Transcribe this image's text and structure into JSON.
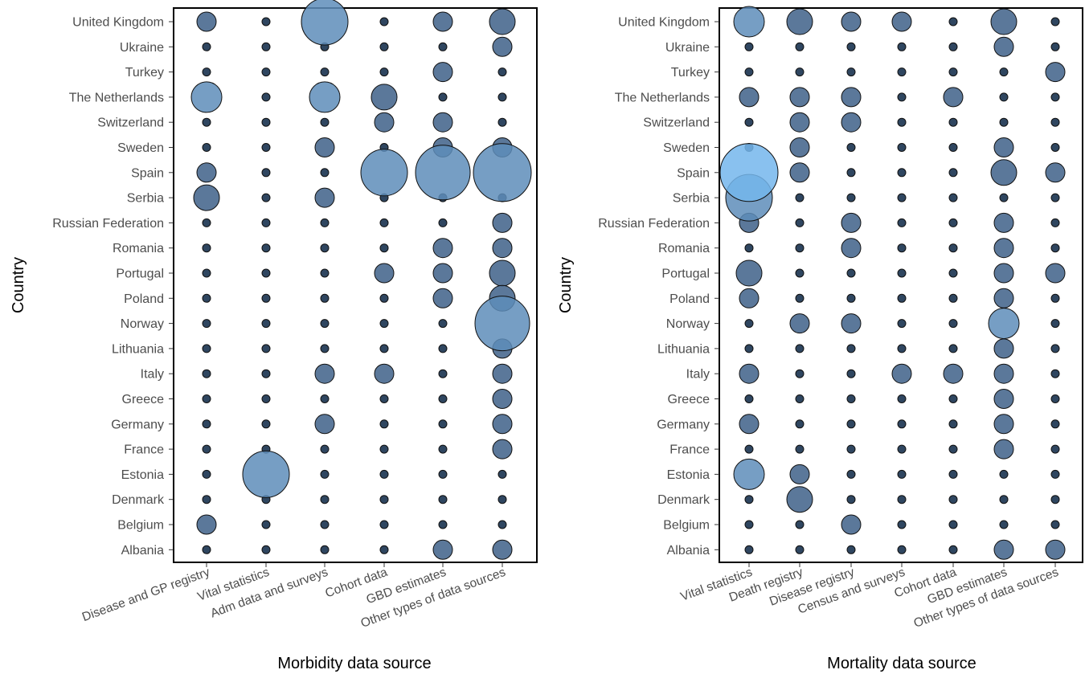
{
  "chart_data": [
    {
      "type": "scatter",
      "subtype": "bubble-grid",
      "xlabel": "Morbidity data source",
      "ylabel": "Country",
      "countries": [
        "United Kingdom",
        "Ukraine",
        "Turkey",
        "The Netherlands",
        "Switzerland",
        "Sweden",
        "Spain",
        "Serbia",
        "Russian Federation",
        "Romania",
        "Portugal",
        "Poland",
        "Norway",
        "Lithuania",
        "Italy",
        "Greece",
        "Germany",
        "France",
        "Estonia",
        "Denmark",
        "Belgium",
        "Albania"
      ],
      "categories": [
        "Disease and GP registry",
        "Vital statistics",
        "Adm data and surveys",
        "Cohort data",
        "GBD estimates",
        "Other types of data sources"
      ],
      "size_scale_note": "values are relative bubble sizes; 0 = smallest dot",
      "values": [
        [
          2,
          0,
          5,
          0,
          2,
          3
        ],
        [
          0,
          0,
          0,
          0,
          0,
          2
        ],
        [
          0,
          0,
          0,
          0,
          2,
          0
        ],
        [
          4,
          0,
          4,
          3,
          0,
          0
        ],
        [
          0,
          0,
          0,
          2,
          2,
          0
        ],
        [
          0,
          0,
          2,
          0,
          2,
          2
        ],
        [
          2,
          0,
          0,
          5,
          6,
          7
        ],
        [
          3,
          0,
          2,
          0,
          0,
          0
        ],
        [
          0,
          0,
          0,
          0,
          0,
          2
        ],
        [
          0,
          0,
          0,
          0,
          2,
          2
        ],
        [
          0,
          0,
          0,
          2,
          2,
          3
        ],
        [
          0,
          0,
          0,
          0,
          2,
          3
        ],
        [
          0,
          0,
          0,
          0,
          0,
          6
        ],
        [
          0,
          0,
          0,
          0,
          0,
          2
        ],
        [
          0,
          0,
          2,
          2,
          0,
          2
        ],
        [
          0,
          0,
          0,
          0,
          0,
          2
        ],
        [
          0,
          0,
          2,
          0,
          0,
          2
        ],
        [
          0,
          0,
          0,
          0,
          0,
          2
        ],
        [
          0,
          5,
          0,
          0,
          0,
          0
        ],
        [
          0,
          0,
          0,
          0,
          0,
          0
        ],
        [
          2,
          0,
          0,
          0,
          0,
          0
        ],
        [
          0,
          0,
          0,
          0,
          2,
          2
        ]
      ],
      "colors": {
        "small": "#2f4660",
        "medium": "#3e6088",
        "large": "#5e8dba"
      }
    },
    {
      "type": "scatter",
      "subtype": "bubble-grid",
      "xlabel": "Mortality data source",
      "ylabel": "Country",
      "countries": [
        "United Kingdom",
        "Ukraine",
        "Turkey",
        "The Netherlands",
        "Switzerland",
        "Sweden",
        "Spain",
        "Serbia",
        "Russian Federation",
        "Romania",
        "Portugal",
        "Poland",
        "Norway",
        "Lithuania",
        "Italy",
        "Greece",
        "Germany",
        "France",
        "Estonia",
        "Denmark",
        "Belgium",
        "Albania"
      ],
      "categories": [
        "Vital statistics",
        "Death registry",
        "Disease registry",
        "Census and surveys",
        "Cohort data",
        "GBD estimates",
        "Other types of data sources"
      ],
      "size_scale_note": "values are relative bubble sizes; 0 = smallest dot",
      "values": [
        [
          4,
          3,
          2,
          2,
          0,
          3,
          0
        ],
        [
          0,
          0,
          0,
          0,
          0,
          2,
          0
        ],
        [
          0,
          0,
          0,
          0,
          0,
          0,
          2
        ],
        [
          2,
          2,
          2,
          0,
          2,
          0,
          0
        ],
        [
          0,
          2,
          2,
          0,
          0,
          0,
          0
        ],
        [
          0,
          2,
          0,
          0,
          0,
          2,
          0
        ],
        [
          7,
          2,
          0,
          0,
          0,
          3,
          2
        ],
        [
          5,
          0,
          0,
          0,
          0,
          0,
          0
        ],
        [
          2,
          0,
          2,
          0,
          0,
          2,
          0
        ],
        [
          0,
          0,
          2,
          0,
          0,
          2,
          0
        ],
        [
          3,
          0,
          0,
          0,
          0,
          2,
          2
        ],
        [
          2,
          0,
          0,
          0,
          0,
          2,
          0
        ],
        [
          0,
          2,
          2,
          0,
          0,
          4,
          0
        ],
        [
          0,
          0,
          0,
          0,
          0,
          2,
          0
        ],
        [
          2,
          0,
          0,
          2,
          2,
          2,
          0
        ],
        [
          0,
          0,
          0,
          0,
          0,
          2,
          0
        ],
        [
          2,
          0,
          0,
          0,
          0,
          2,
          0
        ],
        [
          0,
          0,
          0,
          0,
          0,
          2,
          0
        ],
        [
          4,
          2,
          0,
          0,
          0,
          0,
          0
        ],
        [
          0,
          3,
          0,
          0,
          0,
          0,
          0
        ],
        [
          0,
          0,
          2,
          0,
          0,
          0,
          0
        ],
        [
          0,
          0,
          0,
          0,
          0,
          2,
          2
        ]
      ],
      "colors": {
        "small": "#2f4660",
        "medium": "#3e6088",
        "large": "#5e8dba",
        "largest": "#74b6ec"
      }
    }
  ]
}
